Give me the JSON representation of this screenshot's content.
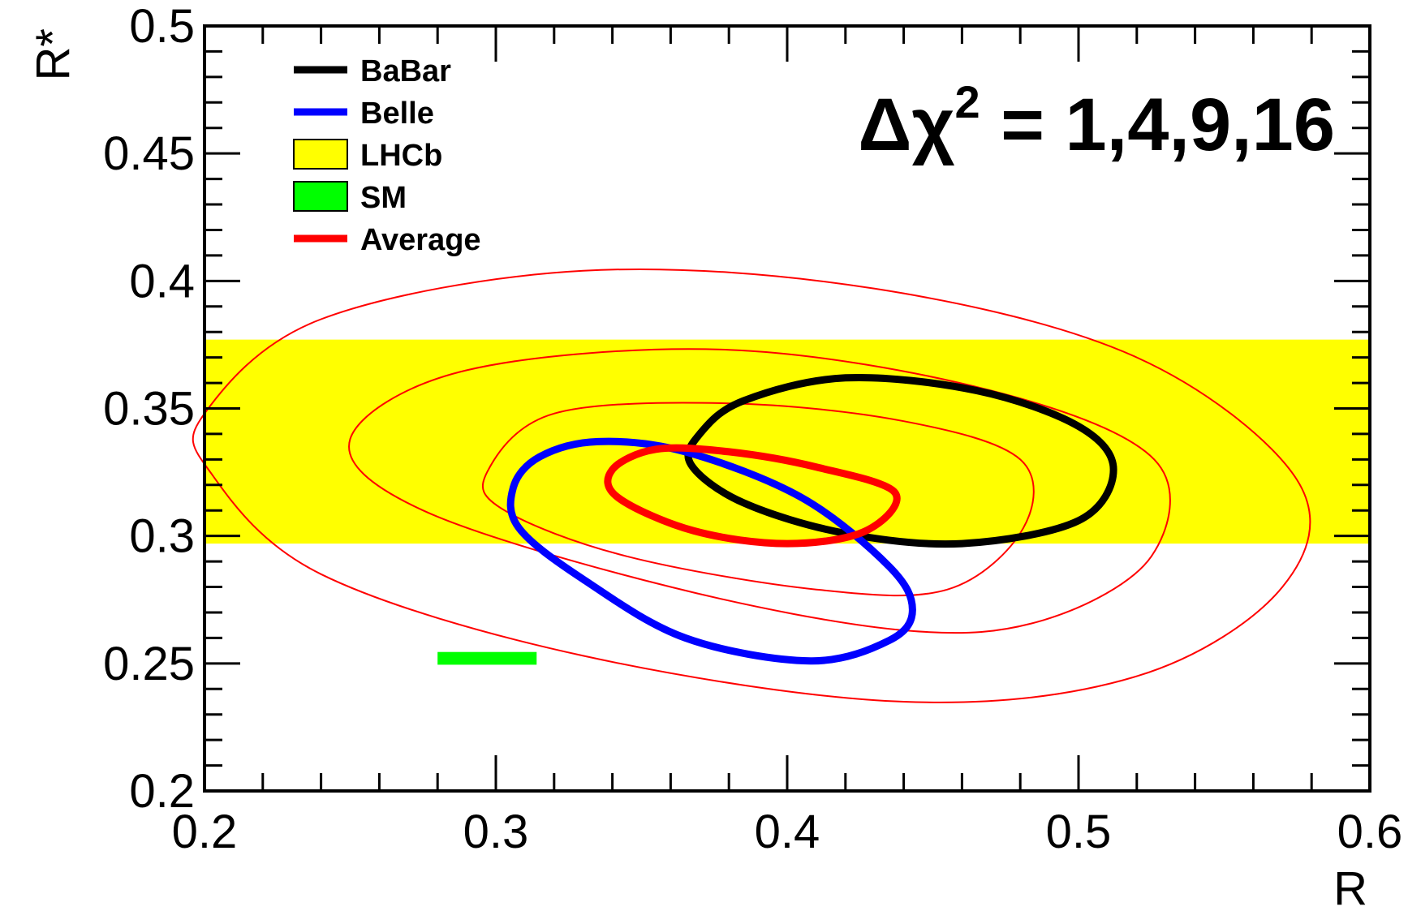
{
  "chart_data": {
    "type": "scatter",
    "title": "",
    "xlabel": "R",
    "ylabel": "R*",
    "xlim": [
      0.2,
      0.6
    ],
    "ylim": [
      0.2,
      0.5
    ],
    "x_tick_labels": [
      "0.2",
      "0.3",
      "0.4",
      "0.5",
      "0.6"
    ],
    "y_tick_labels": [
      "0.2",
      "0.25",
      "0.3",
      "0.35",
      "0.4",
      "0.45",
      "0.5"
    ],
    "annotation": {
      "prefix": "Δχ",
      "superscript": "2",
      "suffix": " = 1,4,9,16"
    },
    "legend_position": "top-left",
    "legend": [
      {
        "label": "BaBar",
        "color": "#000000",
        "style": "line"
      },
      {
        "label": "Belle",
        "color": "#0000ff",
        "style": "line"
      },
      {
        "label": "LHCb",
        "color": "#ffff00",
        "style": "box"
      },
      {
        "label": "SM",
        "color": "#00ff00",
        "style": "box"
      },
      {
        "label": "Average",
        "color": "#ff0000",
        "style": "line"
      }
    ],
    "bands": [
      {
        "name": "LHCb",
        "x_range": [
          0.2,
          0.6
        ],
        "y_range": [
          0.297,
          0.377
        ],
        "color": "#ffff00"
      },
      {
        "name": "SM",
        "x_range": [
          0.28,
          0.314
        ],
        "y_range": [
          0.2495,
          0.2545
        ],
        "color": "#00ff00"
      }
    ],
    "contours": [
      {
        "name": "BaBar",
        "delta_chi2": 1,
        "color": "#000000",
        "stroke": "thick",
        "points": [
          [
            0.37,
            0.34
          ],
          [
            0.385,
            0.353
          ],
          [
            0.42,
            0.362
          ],
          [
            0.465,
            0.357
          ],
          [
            0.5,
            0.343
          ],
          [
            0.512,
            0.326
          ],
          [
            0.5,
            0.306
          ],
          [
            0.46,
            0.297
          ],
          [
            0.42,
            0.301
          ],
          [
            0.385,
            0.313
          ],
          [
            0.367,
            0.328
          ]
        ]
      },
      {
        "name": "Belle",
        "delta_chi2": 1,
        "color": "#0000ff",
        "stroke": "thick",
        "points": [
          [
            0.306,
            0.319
          ],
          [
            0.315,
            0.331
          ],
          [
            0.335,
            0.337
          ],
          [
            0.365,
            0.333
          ],
          [
            0.405,
            0.315
          ],
          [
            0.435,
            0.288
          ],
          [
            0.443,
            0.271
          ],
          [
            0.435,
            0.259
          ],
          [
            0.408,
            0.251
          ],
          [
            0.365,
            0.26
          ],
          [
            0.33,
            0.283
          ],
          [
            0.308,
            0.303
          ]
        ]
      },
      {
        "name": "Average",
        "delta_chi2": 1,
        "color": "#ff0000",
        "stroke": "thick",
        "points": [
          [
            0.34,
            0.326
          ],
          [
            0.355,
            0.334
          ],
          [
            0.38,
            0.333
          ],
          [
            0.41,
            0.327
          ],
          [
            0.437,
            0.317
          ],
          [
            0.427,
            0.302
          ],
          [
            0.4,
            0.297
          ],
          [
            0.368,
            0.302
          ],
          [
            0.342,
            0.315
          ]
        ]
      },
      {
        "name": "Average",
        "delta_chi2": 4,
        "color": "#ff0000",
        "stroke": "thin",
        "points": [
          [
            0.297,
            0.325
          ],
          [
            0.32,
            0.348
          ],
          [
            0.38,
            0.352
          ],
          [
            0.44,
            0.345
          ],
          [
            0.48,
            0.33
          ],
          [
            0.481,
            0.303
          ],
          [
            0.455,
            0.279
          ],
          [
            0.41,
            0.279
          ],
          [
            0.345,
            0.292
          ],
          [
            0.303,
            0.31
          ]
        ]
      },
      {
        "name": "Average",
        "delta_chi2": 9,
        "color": "#ff0000",
        "stroke": "thin",
        "points": [
          [
            0.25,
            0.338
          ],
          [
            0.29,
            0.365
          ],
          [
            0.38,
            0.373
          ],
          [
            0.47,
            0.357
          ],
          [
            0.526,
            0.33
          ],
          [
            0.525,
            0.292
          ],
          [
            0.488,
            0.267
          ],
          [
            0.44,
            0.263
          ],
          [
            0.36,
            0.28
          ],
          [
            0.275,
            0.31
          ]
        ]
      },
      {
        "name": "Average",
        "delta_chi2": 16,
        "color": "#ff0000",
        "stroke": "thin",
        "points": [
          [
            0.2,
            0.348
          ],
          [
            0.24,
            0.385
          ],
          [
            0.33,
            0.404
          ],
          [
            0.43,
            0.397
          ],
          [
            0.52,
            0.37
          ],
          [
            0.575,
            0.322
          ],
          [
            0.57,
            0.28
          ],
          [
            0.52,
            0.245
          ],
          [
            0.44,
            0.235
          ],
          [
            0.33,
            0.253
          ],
          [
            0.24,
            0.285
          ],
          [
            0.202,
            0.325
          ]
        ]
      }
    ]
  }
}
